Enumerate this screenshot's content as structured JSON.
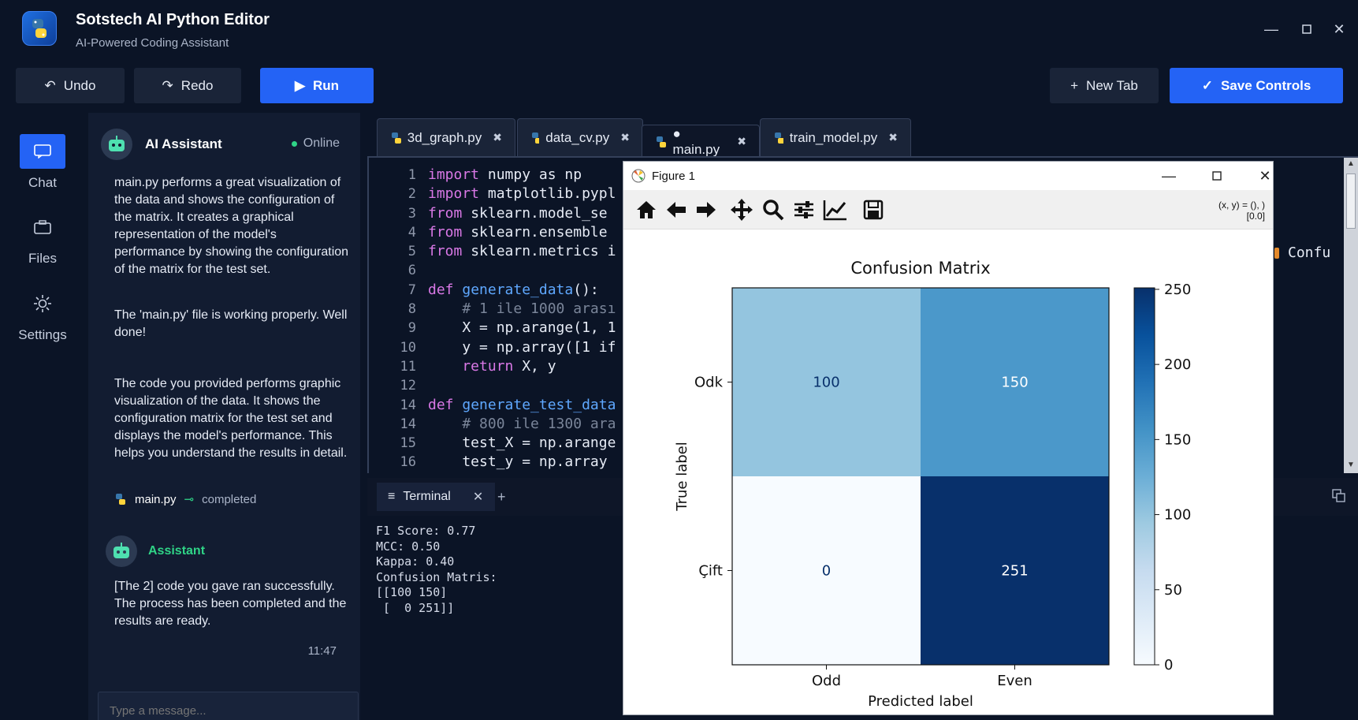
{
  "app": {
    "title": "Sotstech AI Python Editor",
    "subtitle": "AI-Powered Coding Assistant"
  },
  "toolbar": {
    "undo_label": "Undo",
    "redo_label": "Redo",
    "run_label": "Run",
    "new_tab_label": "New Tab",
    "save_label": "Save Controls"
  },
  "rail": {
    "items": [
      {
        "label": "Chat"
      },
      {
        "label": "Files"
      },
      {
        "label": "Settings"
      }
    ]
  },
  "assistant": {
    "title": "AI Assistant",
    "status": "Online",
    "msg1": "main.py performs a great visualization of the data and shows the configuration of the matrix. It creates a graphical representation of the model's performance by showing the configuration of the matrix for the test set.",
    "msg2": "The 'main.py' file is working properly. Well done!",
    "msg3": "The code you provided performs graphic visualization of the data. It shows the configuration matrix for the test set and displays the model's performance. This helps you understand the results in detail.",
    "file_name": "main.py",
    "file_status": "completed",
    "asst2_name": "Assistant",
    "msg4": "[The 2] code you gave ran successfully. The process has been completed and the results are ready.",
    "time": "11:47",
    "input_placeholder": "Type a message..."
  },
  "tabs": [
    {
      "label": "3d_graph.py"
    },
    {
      "label": "data_cv.py"
    },
    {
      "label": "● main.py"
    },
    {
      "label": "train_model.py"
    }
  ],
  "editor": {
    "line_numbers": [
      "1",
      "2",
      "3",
      "4",
      "5",
      "6",
      "7",
      "8",
      "9",
      "10",
      "11",
      "12",
      "14",
      "14",
      "15",
      "16"
    ],
    "lines": [
      {
        "kw": "import",
        "rest": " numpy as np"
      },
      {
        "kw": "import",
        "rest": " matplotlib.pypl"
      },
      {
        "kw": "from",
        "rest": " sklearn.model_se"
      },
      {
        "kw": "from",
        "rest": " sklearn.ensemble"
      },
      {
        "kw": "from",
        "rest": " sklearn.metrics i"
      },
      {
        "kw": "",
        "rest": ""
      },
      {
        "kw": "def",
        "fn": " generate_data",
        "rest": "():"
      },
      {
        "cm": "    # 1 ile 1000 arası"
      },
      {
        "kw": "",
        "rest": "    X = np.arange(1, 1"
      },
      {
        "kw": "",
        "rest": "    y = np.array([1 if"
      },
      {
        "kw": "    return",
        "rest": " X, y"
      },
      {
        "kw": "",
        "rest": ""
      },
      {
        "kw": "def",
        "fn": " generate_test_data",
        "rest": ""
      },
      {
        "cm": "    # 800 ile 1300 ara"
      },
      {
        "kw": "",
        "rest": "    test_X = np.arange"
      },
      {
        "kw": "",
        "rest": "    test_y = np.array"
      }
    ],
    "overflow_text": "Confu"
  },
  "terminal": {
    "tab_label": "Terminal",
    "output": "F1 Score: 0.77\nMCC: 0.50\nKappa: 0.40\nConfusion Matris:\n[[100 150]\n [  0 251]]"
  },
  "figure": {
    "window_title": "Figure 1",
    "coord_line1": "(x, y) = (), )",
    "coord_line2": "[0.0]"
  },
  "chart_data": {
    "type": "heatmap",
    "title": "Confusion Matrix",
    "xlabel": "Predicted label",
    "ylabel": "True label",
    "x_categories": [
      "Odd",
      "Even"
    ],
    "y_categories": [
      "Odk",
      "Çift"
    ],
    "values": [
      [
        100,
        150
      ],
      [
        0,
        251
      ]
    ],
    "colorbar": {
      "min": 0,
      "max": 251,
      "ticks": [
        0,
        50,
        100,
        150,
        200,
        250
      ]
    },
    "colors": {
      "low": "#f7fbff",
      "high": "#08306b"
    }
  }
}
